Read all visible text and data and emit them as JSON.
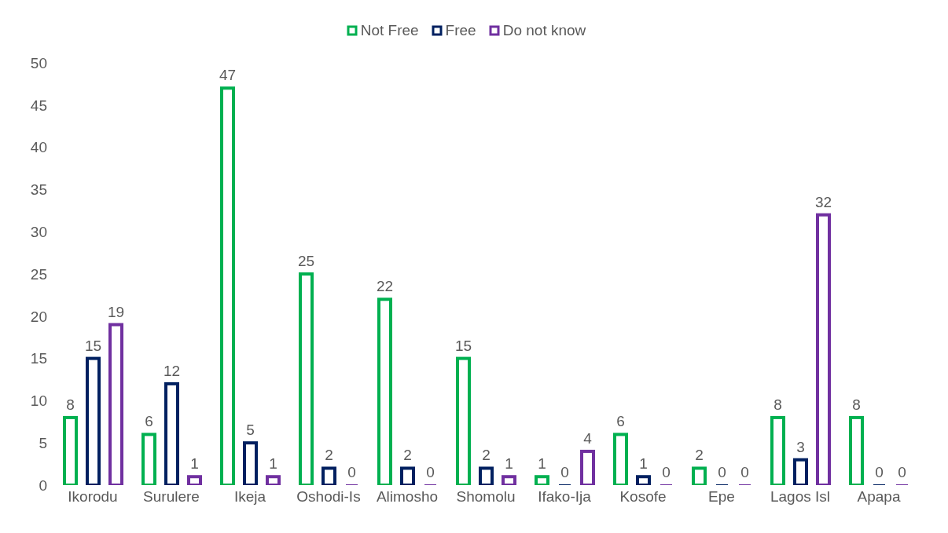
{
  "chart_data": {
    "type": "bar",
    "categories": [
      "Ikorodu",
      "Surulere",
      "Ikeja",
      "Oshodi-Is",
      "Alimosho",
      "Shomolu",
      "Ifako-Ija",
      "Kosofe",
      "Epe",
      "Lagos Isl",
      "Apapa"
    ],
    "series": [
      {
        "name": "Not Free",
        "color": "#00b050",
        "values": [
          8,
          6,
          47,
          25,
          22,
          15,
          1,
          6,
          2,
          8,
          8
        ]
      },
      {
        "name": "Free",
        "color": "#002060",
        "values": [
          15,
          12,
          5,
          2,
          2,
          2,
          0,
          1,
          0,
          3,
          0
        ]
      },
      {
        "name": "Do not know",
        "color": "#7030a0",
        "values": [
          19,
          1,
          1,
          0,
          0,
          1,
          4,
          0,
          0,
          32,
          0
        ]
      }
    ],
    "ylim": [
      0,
      50
    ],
    "yticks": [
      0,
      5,
      10,
      15,
      20,
      25,
      30,
      35,
      40,
      45,
      50
    ],
    "grid": false,
    "legend": "top",
    "data_labels": true
  }
}
